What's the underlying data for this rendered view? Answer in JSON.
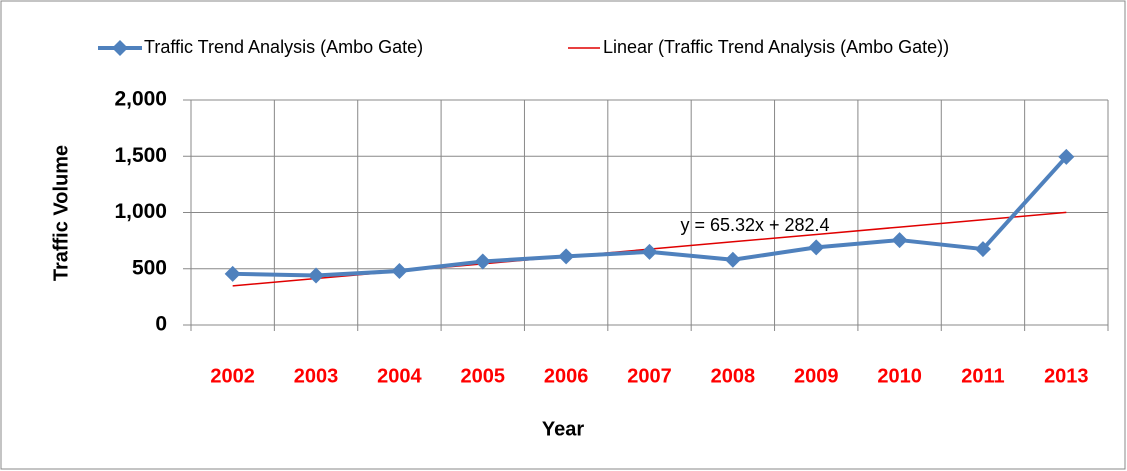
{
  "chart_data": {
    "type": "line",
    "categories": [
      "2002",
      "2003",
      "2004",
      "2005",
      "2006",
      "2007",
      "2008",
      "2009",
      "2010",
      "2011",
      "2013"
    ],
    "series": [
      {
        "name": "Traffic Trend Analysis (Ambo Gate)",
        "color": "#4f81bd",
        "values": [
          455,
          440,
          480,
          565,
          610,
          650,
          580,
          690,
          755,
          675,
          1495
        ]
      },
      {
        "name": "Linear (Traffic Trend Analysis (Ambo Gate))",
        "color": "#e00000",
        "values": [
          347.72,
          413.04,
          478.36,
          543.68,
          609,
          674.32,
          739.64,
          804.96,
          870.28,
          935.6,
          1000.92
        ]
      }
    ],
    "annotation": "y = 65.32x + 282.4",
    "x_label": "Year",
    "y_label": "Traffic Volume",
    "ylim": [
      0,
      2000
    ],
    "yticks": [
      0,
      500,
      {
        "value": 1000,
        "label": "1,000"
      },
      {
        "value": 1500,
        "label": "1,500"
      },
      {
        "value": 2000,
        "label": "2,000"
      }
    ],
    "grid": true,
    "legend": "top",
    "category_label_color": "#ff0000"
  }
}
